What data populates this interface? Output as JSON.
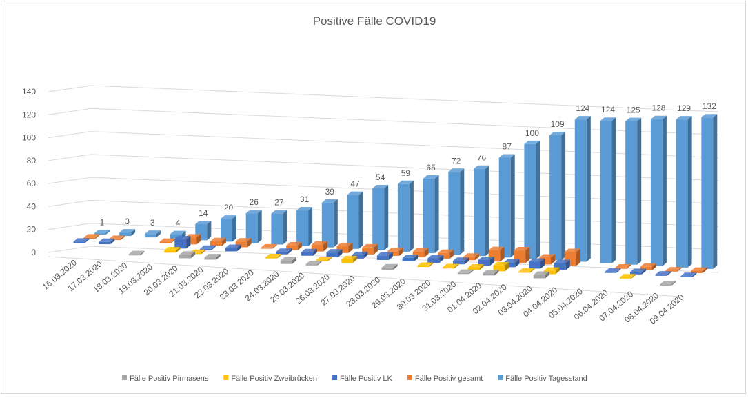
{
  "chart_data": {
    "type": "bar",
    "subtype": "3d-clustered-depth",
    "title": "Positive Fälle COVID19",
    "xlabel": "",
    "ylabel": "",
    "ylim": [
      0,
      140
    ],
    "yticks": [
      0,
      20,
      40,
      60,
      80,
      100,
      120,
      140
    ],
    "grid": true,
    "legend_position": "bottom",
    "categories": [
      "16.03.2020",
      "17.03.2020",
      "18.03.2020",
      "19.03.2020",
      "20.03.2020",
      "21.03.2020",
      "22.03.2020",
      "23.03.2020",
      "24.03.2020",
      "25.03.2020",
      "26.03.2020",
      "27.03.2020",
      "28.03.2020",
      "29.03.2020",
      "30.03.2020",
      "31.03.2020",
      "01.04.2020",
      "02.04.2020",
      "03.04.2020",
      "04.04.2020",
      "05.04.2020",
      "06.04.2020",
      "07.04.2020",
      "08.04.2020",
      "09.04.2020"
    ],
    "series": [
      {
        "name": "Fälle Positiv Pirmasens",
        "color": "#a5a5a5",
        "labels": false,
        "values": [
          0,
          0,
          0,
          1,
          0,
          3,
          2,
          0,
          0,
          3,
          1,
          0,
          0,
          2,
          0,
          0,
          1,
          2,
          0,
          3,
          0,
          0,
          0,
          0,
          1
        ]
      },
      {
        "name": "Fälle Positiv Zweibrücken",
        "color": "#ffc000",
        "labels": false,
        "values": [
          0,
          0,
          0,
          0,
          2,
          1,
          0,
          0,
          1,
          0,
          1,
          3,
          0,
          0,
          1,
          1,
          2,
          5,
          1,
          3,
          0,
          0,
          1,
          0,
          0
        ]
      },
      {
        "name": "Fälle Positiv LK",
        "color": "#4472c4",
        "labels": false,
        "values": [
          1,
          2,
          0,
          0,
          8,
          1,
          3,
          0,
          2,
          3,
          4,
          3,
          4,
          3,
          4,
          3,
          5,
          4,
          6,
          6,
          0,
          1,
          2,
          1,
          1
        ]
      },
      {
        "name": "Fälle Positiv gesamt",
        "color": "#ed7d31",
        "labels": false,
        "values": [
          1,
          1,
          0,
          1,
          6,
          4,
          5,
          1,
          4,
          6,
          6,
          6,
          4,
          5,
          5,
          3,
          10,
          11,
          6,
          12,
          0,
          1,
          3,
          1,
          2
        ]
      },
      {
        "name": "Fälle Positiv Tagesstand",
        "color": "#5b9bd5",
        "labels": true,
        "values": [
          1,
          3,
          3,
          4,
          14,
          20,
          26,
          27,
          31,
          39,
          47,
          54,
          59,
          65,
          72,
          76,
          87,
          100,
          109,
          124,
          124,
          125,
          128,
          129,
          132
        ]
      }
    ]
  }
}
